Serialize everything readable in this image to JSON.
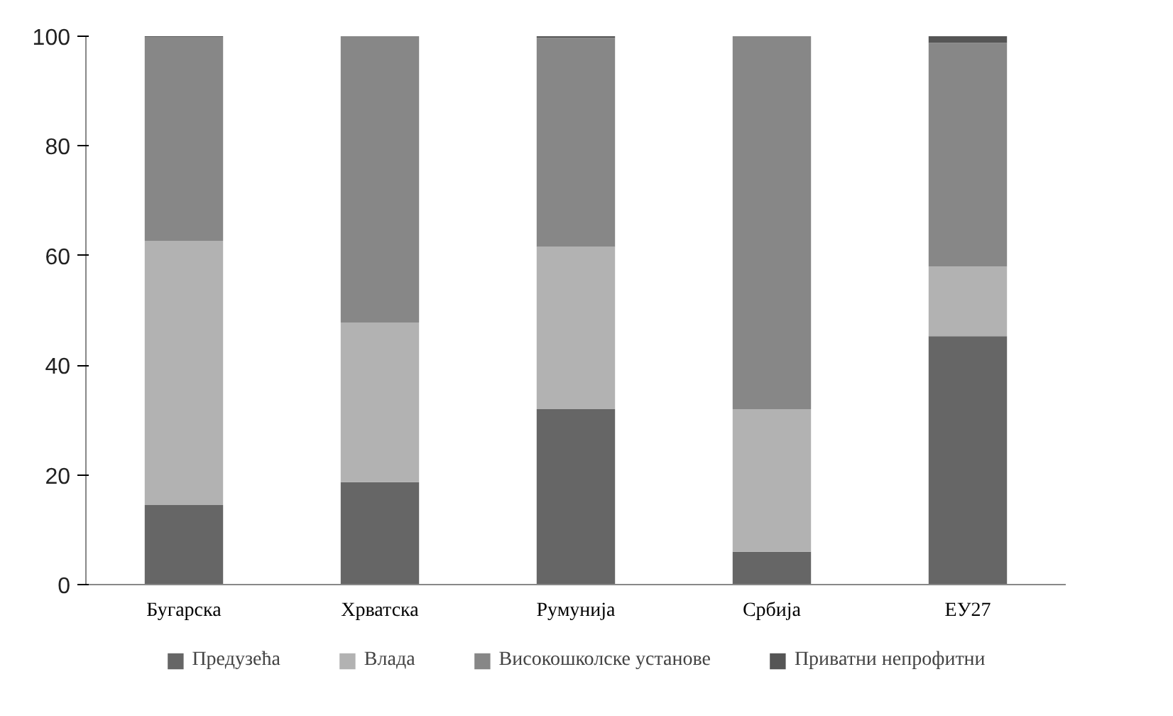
{
  "chart_data": {
    "type": "bar",
    "stacked": true,
    "categories": [
      "Бугарска",
      "Хрватска",
      "Румунија",
      "Србија",
      "ЕУ27"
    ],
    "series": [
      {
        "name": "Предузећа",
        "color": "#666666",
        "values": [
          14.5,
          18.7,
          32,
          6,
          45.3
        ]
      },
      {
        "name": "Влада",
        "color": "#b2b2b2",
        "values": [
          48.2,
          29.1,
          29.6,
          26,
          12.7
        ]
      },
      {
        "name": "Високошколске установе",
        "color": "#878787",
        "values": [
          37.1,
          52.2,
          38.1,
          68,
          40.8
        ]
      },
      {
        "name": "Приватни непрофитни",
        "color": "#555555",
        "values": [
          0.2,
          0,
          0.3,
          0,
          1.2
        ]
      }
    ],
    "ylim": [
      0,
      100
    ],
    "yticks": [
      0,
      20,
      40,
      60,
      80,
      100
    ],
    "grid": false,
    "legend": "bottom"
  }
}
